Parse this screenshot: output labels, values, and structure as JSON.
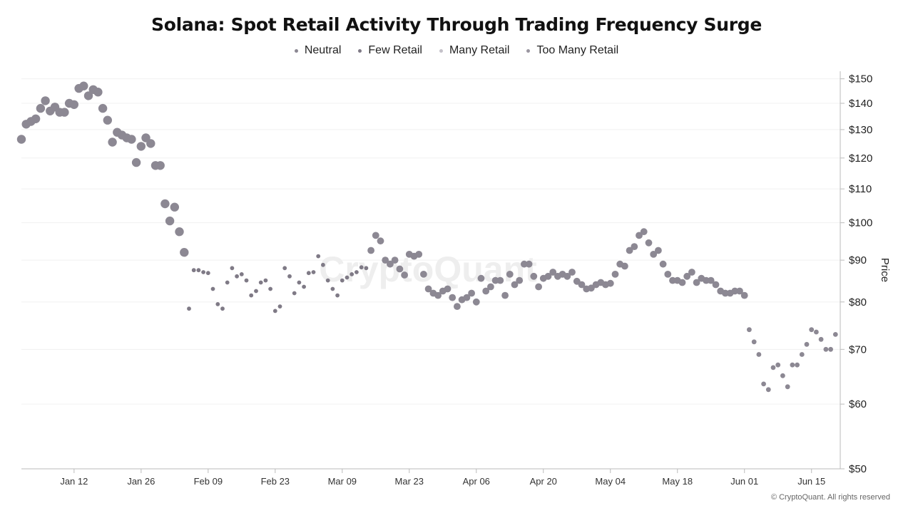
{
  "page": {
    "title": "Solana: Spot Retail Activity Through Trading Frequency Surge",
    "credit": "© CryptoQuant. All rights reserved",
    "watermark": "CryptoQuant"
  },
  "legend": {
    "items": [
      {
        "label": "Neutral",
        "color": "#8c8893"
      },
      {
        "label": "Few Retail",
        "color": "#7f7a86"
      },
      {
        "label": "Many Retail",
        "color": "#c4c1c9"
      },
      {
        "label": "Too Many Retail",
        "color": "#9a96a0"
      }
    ]
  },
  "chart_data": {
    "type": "scatter",
    "title": "Solana: Spot Retail Activity Through Trading Frequency Surge",
    "xlabel": "",
    "ylabel": "Price",
    "y_scale": "log",
    "ylim": [
      50,
      152
    ],
    "x_range": [
      "2026-01-01",
      "2026-06-21"
    ],
    "grid": true,
    "legend_position": "top-center",
    "x_ticks": [
      {
        "label": "Jan 12",
        "date": "2026-01-12"
      },
      {
        "label": "Jan 26",
        "date": "2026-01-26"
      },
      {
        "label": "Feb 09",
        "date": "2026-02-09"
      },
      {
        "label": "Feb 23",
        "date": "2026-02-23"
      },
      {
        "label": "Mar 09",
        "date": "2026-03-09"
      },
      {
        "label": "Mar 23",
        "date": "2026-03-23"
      },
      {
        "label": "Apr 06",
        "date": "2026-04-06"
      },
      {
        "label": "Apr 20",
        "date": "2026-04-20"
      },
      {
        "label": "May 04",
        "date": "2026-05-04"
      },
      {
        "label": "May 18",
        "date": "2026-05-18"
      },
      {
        "label": "Jun 01",
        "date": "2026-06-01"
      },
      {
        "label": "Jun 15",
        "date": "2026-06-15"
      }
    ],
    "y_ticks": [
      {
        "label": "$150",
        "value": 150
      },
      {
        "label": "$140",
        "value": 140
      },
      {
        "label": "$130",
        "value": 130
      },
      {
        "label": "$120",
        "value": 120
      },
      {
        "label": "$110",
        "value": 110
      },
      {
        "label": "$100",
        "value": 100
      },
      {
        "label": "$90",
        "value": 90
      },
      {
        "label": "$80",
        "value": 80
      },
      {
        "label": "$70",
        "value": 70
      },
      {
        "label": "$60",
        "value": 60
      },
      {
        "label": "$50",
        "value": 50
      }
    ],
    "series": [
      {
        "name": "Neutral",
        "color": "#8c8893",
        "points": [
          [
            "2026-01-01",
            126.5
          ],
          [
            "2026-01-02",
            132
          ],
          [
            "2026-01-03",
            133
          ],
          [
            "2026-01-04",
            134
          ],
          [
            "2026-01-05",
            138
          ],
          [
            "2026-01-06",
            141
          ],
          [
            "2026-01-07",
            137
          ],
          [
            "2026-01-08",
            138.5
          ],
          [
            "2026-01-09",
            136.5
          ],
          [
            "2026-01-10",
            136.5
          ],
          [
            "2026-01-11",
            140
          ],
          [
            "2026-01-12",
            139.5
          ],
          [
            "2026-01-13",
            146
          ],
          [
            "2026-01-14",
            147
          ],
          [
            "2026-01-15",
            143
          ],
          [
            "2026-01-16",
            145.5
          ],
          [
            "2026-01-17",
            144.5
          ],
          [
            "2026-01-18",
            138
          ],
          [
            "2026-01-19",
            133.5
          ],
          [
            "2026-01-20",
            125.5
          ],
          [
            "2026-01-21",
            129
          ],
          [
            "2026-01-22",
            128
          ],
          [
            "2026-01-23",
            127
          ],
          [
            "2026-01-24",
            126.5
          ],
          [
            "2026-01-25",
            118.5
          ],
          [
            "2026-01-26",
            124
          ],
          [
            "2026-01-27",
            127
          ],
          [
            "2026-01-28",
            125
          ],
          [
            "2026-01-29",
            117.5
          ],
          [
            "2026-01-30",
            117.5
          ],
          [
            "2026-01-31",
            105.5
          ],
          [
            "2026-02-01",
            100.5
          ],
          [
            "2026-02-02",
            104.5
          ],
          [
            "2026-02-03",
            97.5
          ],
          [
            "2026-02-04",
            92
          ]
        ]
      },
      {
        "name": "Few Retail",
        "color": "#7f7a86",
        "points": [
          [
            "2026-02-05",
            78.5
          ],
          [
            "2026-02-06",
            87.5
          ],
          [
            "2026-02-07",
            87.5
          ],
          [
            "2026-02-08",
            87
          ],
          [
            "2026-02-09",
            86.8
          ],
          [
            "2026-02-10",
            83
          ],
          [
            "2026-02-11",
            79.5
          ],
          [
            "2026-02-12",
            78.5
          ],
          [
            "2026-02-13",
            84.5
          ],
          [
            "2026-02-14",
            88
          ],
          [
            "2026-02-15",
            86
          ],
          [
            "2026-02-16",
            86.5
          ],
          [
            "2026-02-17",
            85
          ],
          [
            "2026-02-18",
            81.5
          ],
          [
            "2026-02-19",
            82.5
          ],
          [
            "2026-02-20",
            84.5
          ],
          [
            "2026-02-21",
            85
          ],
          [
            "2026-02-22",
            83
          ],
          [
            "2026-02-23",
            78
          ],
          [
            "2026-02-24",
            79
          ],
          [
            "2026-02-25",
            88
          ],
          [
            "2026-02-26",
            86
          ],
          [
            "2026-02-27",
            82
          ],
          [
            "2026-02-28",
            84.5
          ],
          [
            "2026-03-01",
            83.5
          ],
          [
            "2026-03-02",
            86.8
          ],
          [
            "2026-03-03",
            87
          ],
          [
            "2026-03-04",
            91
          ],
          [
            "2026-03-05",
            88.8
          ],
          [
            "2026-03-06",
            85
          ],
          [
            "2026-03-07",
            83
          ],
          [
            "2026-03-08",
            81.5
          ],
          [
            "2026-03-09",
            85
          ],
          [
            "2026-03-10",
            85.7
          ],
          [
            "2026-03-11",
            86.5
          ],
          [
            "2026-03-12",
            87
          ],
          [
            "2026-03-13",
            88.2
          ],
          [
            "2026-03-14",
            88
          ]
        ]
      },
      {
        "name": "Too Many Retail",
        "color": "#8c8893",
        "points": [
          [
            "2026-03-15",
            92.5
          ],
          [
            "2026-03-16",
            96.5
          ],
          [
            "2026-03-17",
            95
          ],
          [
            "2026-03-18",
            90
          ],
          [
            "2026-03-19",
            89
          ],
          [
            "2026-03-20",
            90
          ],
          [
            "2026-03-21",
            87.8
          ],
          [
            "2026-03-22",
            86.3
          ],
          [
            "2026-03-23",
            91.5
          ],
          [
            "2026-03-24",
            91
          ],
          [
            "2026-03-25",
            91.5
          ],
          [
            "2026-03-26",
            86.5
          ],
          [
            "2026-03-27",
            83
          ],
          [
            "2026-03-28",
            82
          ],
          [
            "2026-03-29",
            81.5
          ],
          [
            "2026-03-30",
            82.5
          ],
          [
            "2026-03-31",
            83
          ],
          [
            "2026-04-01",
            81
          ],
          [
            "2026-04-02",
            79
          ],
          [
            "2026-04-03",
            80.5
          ],
          [
            "2026-04-04",
            81
          ],
          [
            "2026-04-05",
            82
          ],
          [
            "2026-04-06",
            80
          ],
          [
            "2026-04-07",
            85.5
          ],
          [
            "2026-04-08",
            82.5
          ],
          [
            "2026-04-09",
            83.5
          ],
          [
            "2026-04-10",
            85
          ],
          [
            "2026-04-11",
            85
          ],
          [
            "2026-04-12",
            81.5
          ],
          [
            "2026-04-13",
            86.5
          ],
          [
            "2026-04-14",
            84
          ],
          [
            "2026-04-15",
            85
          ],
          [
            "2026-04-16",
            89
          ],
          [
            "2026-04-17",
            89
          ],
          [
            "2026-04-18",
            86
          ],
          [
            "2026-04-19",
            83.5
          ],
          [
            "2026-04-20",
            85.5
          ],
          [
            "2026-04-21",
            86
          ],
          [
            "2026-04-22",
            87
          ],
          [
            "2026-04-23",
            86
          ],
          [
            "2026-04-24",
            86.5
          ],
          [
            "2026-04-25",
            86
          ],
          [
            "2026-04-26",
            87
          ],
          [
            "2026-04-27",
            84.8
          ],
          [
            "2026-04-28",
            84
          ],
          [
            "2026-04-29",
            83
          ],
          [
            "2026-04-30",
            83.2
          ],
          [
            "2026-05-01",
            84
          ],
          [
            "2026-05-02",
            84.5
          ],
          [
            "2026-05-03",
            84
          ],
          [
            "2026-05-04",
            84.3
          ],
          [
            "2026-05-05",
            86.5
          ],
          [
            "2026-05-06",
            89
          ],
          [
            "2026-05-07",
            88.5
          ],
          [
            "2026-05-08",
            92.5
          ],
          [
            "2026-05-09",
            93.5
          ],
          [
            "2026-05-10",
            96.5
          ],
          [
            "2026-05-11",
            97.5
          ],
          [
            "2026-05-12",
            94.5
          ],
          [
            "2026-05-13",
            91.5
          ],
          [
            "2026-05-14",
            92.5
          ],
          [
            "2026-05-15",
            89
          ],
          [
            "2026-05-16",
            86.5
          ],
          [
            "2026-05-17",
            85
          ],
          [
            "2026-05-18",
            85
          ],
          [
            "2026-05-19",
            84.5
          ],
          [
            "2026-05-20",
            86
          ],
          [
            "2026-05-21",
            87
          ],
          [
            "2026-05-22",
            84.5
          ],
          [
            "2026-05-23",
            85.5
          ],
          [
            "2026-05-24",
            85
          ],
          [
            "2026-05-25",
            85
          ],
          [
            "2026-05-26",
            84
          ],
          [
            "2026-05-27",
            82.5
          ],
          [
            "2026-05-28",
            82
          ],
          [
            "2026-05-29",
            82
          ],
          [
            "2026-05-30",
            82.5
          ],
          [
            "2026-05-31",
            82.5
          ],
          [
            "2026-06-01",
            81.5
          ]
        ]
      },
      {
        "name": "Many Retail",
        "color": "#8c8893",
        "points": [
          [
            "2026-06-02",
            74
          ],
          [
            "2026-06-03",
            71.5
          ],
          [
            "2026-06-04",
            69
          ],
          [
            "2026-06-05",
            63.5
          ],
          [
            "2026-06-06",
            62.5
          ],
          [
            "2026-06-07",
            66.5
          ],
          [
            "2026-06-08",
            67
          ],
          [
            "2026-06-09",
            65
          ],
          [
            "2026-06-10",
            63
          ],
          [
            "2026-06-11",
            67
          ],
          [
            "2026-06-12",
            67
          ],
          [
            "2026-06-13",
            69
          ],
          [
            "2026-06-14",
            71
          ],
          [
            "2026-06-15",
            74
          ],
          [
            "2026-06-16",
            73.5
          ],
          [
            "2026-06-17",
            72
          ],
          [
            "2026-06-18",
            70
          ],
          [
            "2026-06-19",
            70
          ],
          [
            "2026-06-20",
            73
          ]
        ]
      }
    ]
  }
}
